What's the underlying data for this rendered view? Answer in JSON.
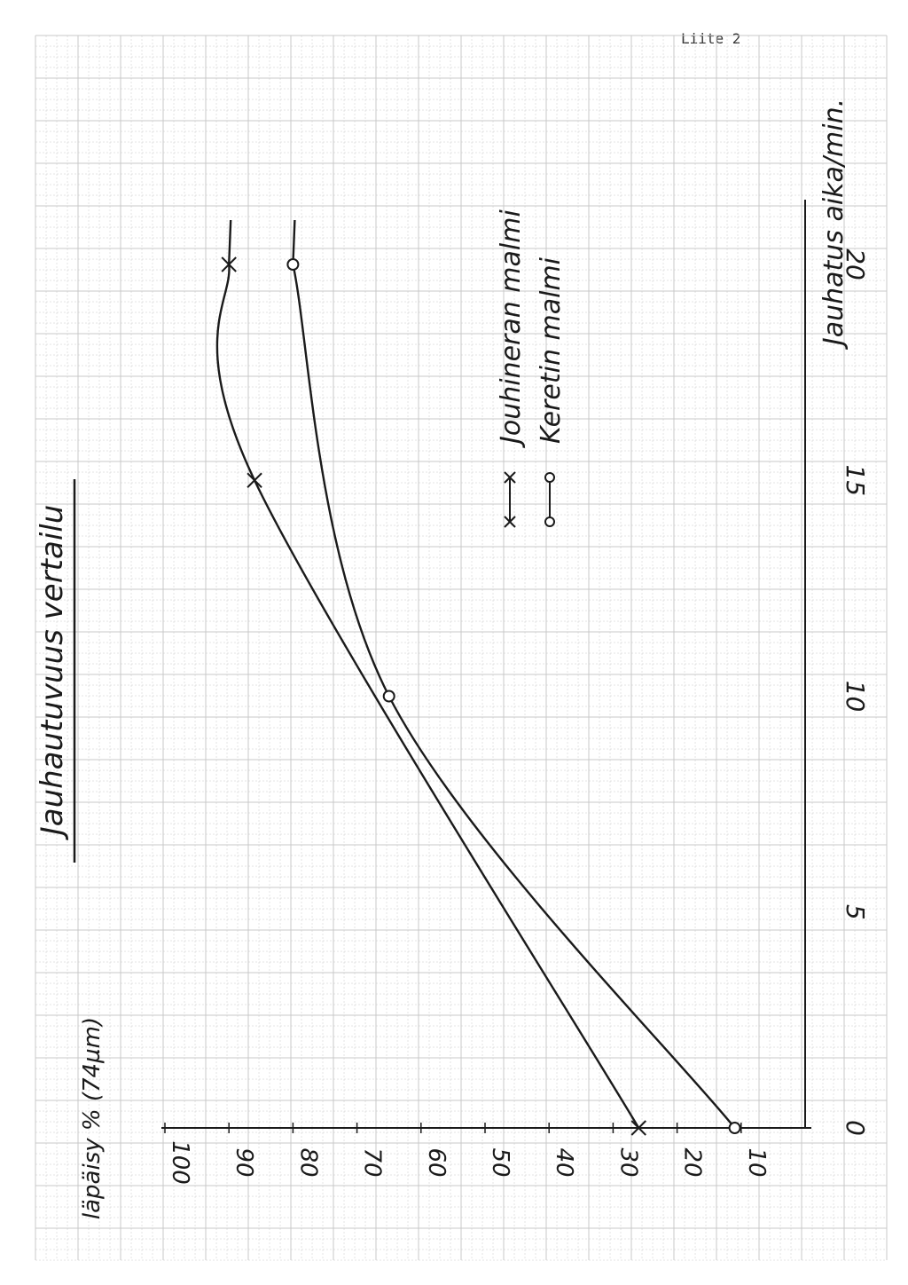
{
  "header": {
    "label": "Liite 2"
  },
  "chart_data": {
    "type": "line",
    "title": "Jauhautuvuus vertailu",
    "xlabel": "Jauhatus aika/min.",
    "ylabel": "läpäisy % (74µm)",
    "xlim": [
      0,
      25
    ],
    "ylim": [
      0,
      100
    ],
    "x_ticks": [
      "0",
      "5",
      "10",
      "15",
      "20"
    ],
    "y_ticks": [
      "10",
      "20",
      "30",
      "40",
      "50",
      "60",
      "70",
      "80",
      "90",
      "100"
    ],
    "grid": true,
    "legend_position": "right",
    "series": [
      {
        "name": "Jouhineran malmi",
        "marker": "x",
        "points": [
          {
            "x": 0,
            "y": 26
          },
          {
            "x": 15,
            "y": 86
          },
          {
            "x": 20,
            "y": 90
          }
        ]
      },
      {
        "name": "Keretin malmi",
        "marker": "o",
        "points": [
          {
            "x": 0,
            "y": 11
          },
          {
            "x": 10,
            "y": 65
          },
          {
            "x": 20,
            "y": 80
          }
        ]
      }
    ]
  },
  "colors": {
    "ink": "#1a1a1a",
    "grid": "#c8c8c8",
    "paper": "#ffffff"
  }
}
